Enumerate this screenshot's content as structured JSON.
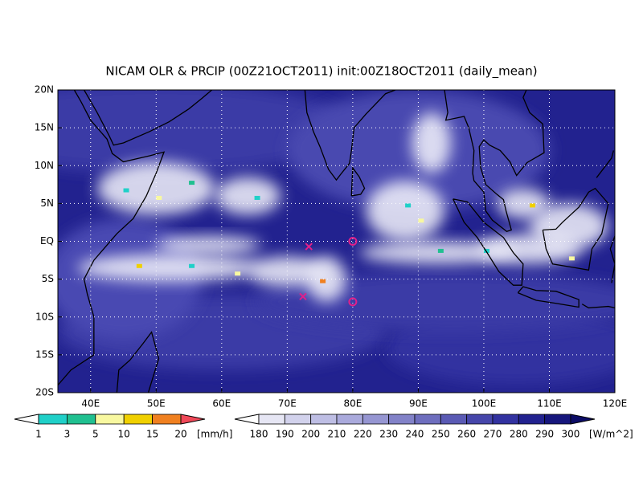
{
  "title": "NICAM OLR & PRCIP (00Z21OCT2011) init:00Z18OCT2011 (daily_mean)",
  "map": {
    "lon_range": [
      35,
      120
    ],
    "lat_range": [
      -20,
      20
    ],
    "lon_ticks": [
      {
        "value": 40,
        "label": "40E"
      },
      {
        "value": 50,
        "label": "50E"
      },
      {
        "value": 60,
        "label": "60E"
      },
      {
        "value": 70,
        "label": "70E"
      },
      {
        "value": 80,
        "label": "80E"
      },
      {
        "value": 90,
        "label": "90E"
      },
      {
        "value": 100,
        "label": "100E"
      },
      {
        "value": 110,
        "label": "110E"
      },
      {
        "value": 120,
        "label": "120E"
      }
    ],
    "lat_ticks": [
      {
        "value": 20,
        "label": "20N"
      },
      {
        "value": 15,
        "label": "15N"
      },
      {
        "value": 10,
        "label": "10N"
      },
      {
        "value": 5,
        "label": "5N"
      },
      {
        "value": 0,
        "label": "EQ"
      },
      {
        "value": -5,
        "label": "5S"
      },
      {
        "value": -10,
        "label": "10S"
      },
      {
        "value": -15,
        "label": "15S"
      },
      {
        "value": -20,
        "label": "20S"
      }
    ],
    "markers": [
      {
        "shape": "x",
        "lon": 73.3,
        "lat": -0.7
      },
      {
        "shape": "x",
        "lon": 72.4,
        "lat": -7.3
      },
      {
        "shape": "circle",
        "lon": 80,
        "lat": 0
      },
      {
        "shape": "circle",
        "lon": 80,
        "lat": -8
      }
    ],
    "marker_color": "#e0208a"
  },
  "precip_bar": {
    "levels": [
      1,
      3,
      5,
      10,
      15,
      20
    ],
    "unit": "[mm/h]",
    "colors": [
      "#ffffff",
      "#20d0c8",
      "#20c090",
      "#f8f8a0",
      "#f0d000",
      "#f08020",
      "#f04858"
    ]
  },
  "olr_bar": {
    "levels": [
      180,
      190,
      200,
      210,
      220,
      230,
      240,
      250,
      260,
      270,
      280,
      290,
      300
    ],
    "unit": "[W/m^2]",
    "colors": [
      "#ffffff",
      "#e6e6f4",
      "#d2d2ec",
      "#bebee4",
      "#aaaadc",
      "#9696d2",
      "#8282c8",
      "#6e6ebe",
      "#5a5ab4",
      "#4646aa",
      "#3232a0",
      "#22228f",
      "#16167c",
      "#0c0c66"
    ]
  }
}
